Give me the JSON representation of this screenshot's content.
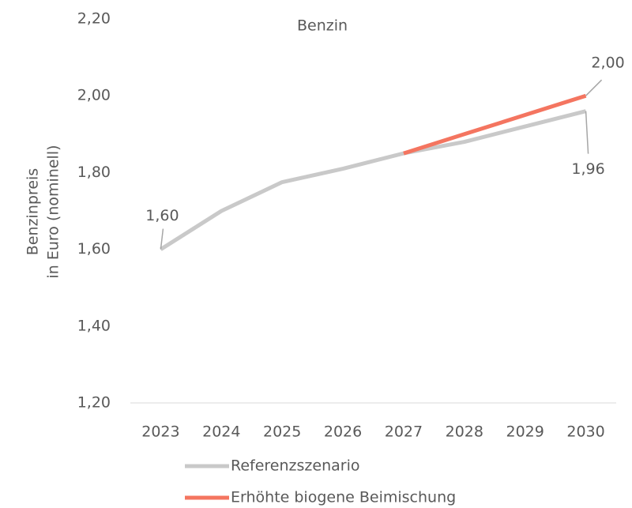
{
  "chart_data": {
    "type": "line",
    "title": "Benzin",
    "ylabel": [
      "Benzinpreis",
      "in Euro (nominell)"
    ],
    "categories": [
      "2023",
      "2024",
      "2025",
      "2026",
      "2027",
      "2028",
      "2029",
      "2030"
    ],
    "series": [
      {
        "name": "Referenzszenario",
        "color": "#c9c9c9",
        "values": [
          1.6,
          1.7,
          1.775,
          1.81,
          1.85,
          1.88,
          1.92,
          1.96
        ],
        "value_labels": [
          "1,60",
          null,
          null,
          null,
          null,
          null,
          null,
          "1,96"
        ]
      },
      {
        "name": "Erhöhte biogene Beimischung",
        "color": "#f47560",
        "values": [
          null,
          null,
          null,
          null,
          1.85,
          1.9,
          1.95,
          2.0
        ],
        "value_labels": [
          null,
          null,
          null,
          null,
          null,
          null,
          null,
          "2,00"
        ]
      }
    ],
    "ylim": [
      1.2,
      2.2
    ],
    "yticks": [
      {
        "value": 1.2,
        "label": "1,20"
      },
      {
        "value": 1.4,
        "label": "1,40"
      },
      {
        "value": 1.6,
        "label": "1,60"
      },
      {
        "value": 1.8,
        "label": "1,80"
      },
      {
        "value": 2.0,
        "label": "2,00"
      },
      {
        "value": 2.2,
        "label": "2,20"
      }
    ],
    "grid": false,
    "legend": "bottom"
  }
}
